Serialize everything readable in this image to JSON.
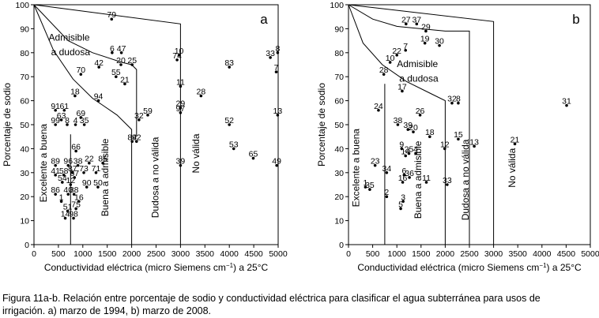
{
  "chart_data": [
    {
      "type": "scatter",
      "panel_label": "a",
      "xlabel": "Conductividad eléctrica (micro Siemens cm",
      "xlabel_sup": "−1",
      "xlabel_suffix": ") a 25°C",
      "ylabel": "Porcentaje de sodio",
      "xlim": [
        0,
        5000
      ],
      "ylim": [
        0,
        100
      ],
      "x_ticks": [
        0,
        500,
        1000,
        1500,
        2000,
        2500,
        3000,
        3500,
        4000,
        4500,
        5000
      ],
      "y_ticks": [
        0,
        10,
        20,
        30,
        40,
        50,
        60,
        70,
        80,
        90,
        100
      ],
      "regions": [
        {
          "label": "Excelente a buena",
          "orient": "vertical",
          "x": 260,
          "y": 34
        },
        {
          "label": "Buena a admisible",
          "orient": "vertical",
          "x": 1520,
          "y": 28
        },
        {
          "label": "Admisible",
          "orient": "horizontal",
          "x": 300,
          "y": 85
        },
        {
          "label": "a dudosa",
          "orient": "horizontal",
          "x": 350,
          "y": 79
        },
        {
          "label": "Dudosa a no válida",
          "orient": "vertical",
          "x": 2550,
          "y": 28
        },
        {
          "label": "No válida",
          "orient": "vertical",
          "x": 3380,
          "y": 38
        }
      ],
      "points": [
        {
          "label": "79",
          "x": 1590,
          "y": 94
        },
        {
          "label": "6",
          "x": 1600,
          "y": 80
        },
        {
          "label": "47",
          "x": 1790,
          "y": 80
        },
        {
          "label": "42",
          "x": 1330,
          "y": 74
        },
        {
          "label": "20",
          "x": 1780,
          "y": 75
        },
        {
          "label": "25",
          "x": 2010,
          "y": 75
        },
        {
          "label": "70",
          "x": 960,
          "y": 71
        },
        {
          "label": "55",
          "x": 1680,
          "y": 70
        },
        {
          "label": "21",
          "x": 1860,
          "y": 67
        },
        {
          "label": "18",
          "x": 840,
          "y": 62
        },
        {
          "label": "94",
          "x": 1320,
          "y": 60
        },
        {
          "label": "91",
          "x": 440,
          "y": 56
        },
        {
          "label": "61",
          "x": 620,
          "y": 56
        },
        {
          "label": "63",
          "x": 560,
          "y": 52
        },
        {
          "label": "69",
          "x": 960,
          "y": 53
        },
        {
          "label": "99",
          "x": 440,
          "y": 50
        },
        {
          "label": "8",
          "x": 680,
          "y": 50
        },
        {
          "label": "4",
          "x": 850,
          "y": 50
        },
        {
          "label": "35",
          "x": 1030,
          "y": 50
        },
        {
          "label": "66",
          "x": 860,
          "y": 39
        },
        {
          "label": "89",
          "x": 440,
          "y": 33
        },
        {
          "label": "96",
          "x": 700,
          "y": 33
        },
        {
          "label": "38",
          "x": 900,
          "y": 33
        },
        {
          "label": "22",
          "x": 1130,
          "y": 34
        },
        {
          "label": "85",
          "x": 1410,
          "y": 34
        },
        {
          "label": "41",
          "x": 440,
          "y": 29
        },
        {
          "label": "58",
          "x": 610,
          "y": 29
        },
        {
          "label": "87",
          "x": 790,
          "y": 30
        },
        {
          "label": "67",
          "x": 830,
          "y": 28
        },
        {
          "label": "73",
          "x": 1020,
          "y": 30
        },
        {
          "label": "71",
          "x": 1270,
          "y": 30
        },
        {
          "label": "54",
          "x": 580,
          "y": 26
        },
        {
          "label": "12",
          "x": 750,
          "y": 25
        },
        {
          "label": "90",
          "x": 1080,
          "y": 24
        },
        {
          "label": "50",
          "x": 1310,
          "y": 24
        },
        {
          "label": "86",
          "x": 440,
          "y": 21
        },
        {
          "label": "40",
          "x": 700,
          "y": 21
        },
        {
          "label": "88",
          "x": 820,
          "y": 21
        },
        {
          "label": "1",
          "x": 560,
          "y": 18
        },
        {
          "label": "16",
          "x": 920,
          "y": 18
        },
        {
          "label": "51",
          "x": 690,
          "y": 14
        },
        {
          "label": "75",
          "x": 860,
          "y": 15
        },
        {
          "label": "14",
          "x": 640,
          "y": 11
        },
        {
          "label": "98",
          "x": 810,
          "y": 11
        },
        {
          "label": "84",
          "x": 2010,
          "y": 43
        },
        {
          "label": "92",
          "x": 2100,
          "y": 43
        },
        {
          "label": "32",
          "x": 2150,
          "y": 52
        },
        {
          "label": "59",
          "x": 2330,
          "y": 54
        },
        {
          "label": "10",
          "x": 2970,
          "y": 79
        },
        {
          "label": "74",
          "x": 2930,
          "y": 77
        },
        {
          "label": "11",
          "x": 3000,
          "y": 66
        },
        {
          "label": "29",
          "x": 3000,
          "y": 57
        },
        {
          "label": "97",
          "x": 3000,
          "y": 55
        },
        {
          "label": "39",
          "x": 3000,
          "y": 33
        },
        {
          "label": "28",
          "x": 3420,
          "y": 62
        },
        {
          "label": "83",
          "x": 4000,
          "y": 74
        },
        {
          "label": "33",
          "x": 4840,
          "y": 78
        },
        {
          "label": "8",
          "x": 4990,
          "y": 80
        },
        {
          "label": "7",
          "x": 4960,
          "y": 72
        },
        {
          "label": "52",
          "x": 4000,
          "y": 50
        },
        {
          "label": "13",
          "x": 4990,
          "y": 54
        },
        {
          "label": "53",
          "x": 4090,
          "y": 40
        },
        {
          "label": "65",
          "x": 4490,
          "y": 36
        },
        {
          "label": "49",
          "x": 4970,
          "y": 33
        }
      ]
    },
    {
      "type": "scatter",
      "panel_label": "b",
      "xlabel": "Conductividad eléctrica (micro Siemens cm",
      "xlabel_sup": "−1",
      "xlabel_suffix": ") a 25°C",
      "ylabel": "Porcentaje de sodio",
      "xlim": [
        0,
        5000
      ],
      "ylim": [
        0,
        100
      ],
      "x_ticks": [
        0,
        500,
        1000,
        1500,
        2000,
        2500,
        3000,
        3500,
        4000,
        4500,
        5000
      ],
      "y_ticks": [
        0,
        10,
        20,
        30,
        40,
        50,
        60,
        70,
        80,
        90,
        100
      ],
      "regions": [
        {
          "label": "Excelente a buena",
          "orient": "vertical",
          "x": 220,
          "y": 32
        },
        {
          "label": "Buena a admisible",
          "orient": "vertical",
          "x": 1500,
          "y": 27
        },
        {
          "label": "Admisible",
          "orient": "horizontal",
          "x": 1000,
          "y": 74
        },
        {
          "label": "a dudosa",
          "orient": "horizontal",
          "x": 1050,
          "y": 68
        },
        {
          "label": "Dudosa a no válida",
          "orient": "vertical",
          "x": 2480,
          "y": 27
        },
        {
          "label": "No válida",
          "orient": "vertical",
          "x": 3450,
          "y": 32
        }
      ],
      "points": [
        {
          "label": "27",
          "x": 1190,
          "y": 92
        },
        {
          "label": "37",
          "x": 1410,
          "y": 92
        },
        {
          "label": "29",
          "x": 1600,
          "y": 89
        },
        {
          "label": "19",
          "x": 1580,
          "y": 84
        },
        {
          "label": "30",
          "x": 1880,
          "y": 83
        },
        {
          "label": "22",
          "x": 1000,
          "y": 79
        },
        {
          "label": "7",
          "x": 1180,
          "y": 81
        },
        {
          "label": "10",
          "x": 860,
          "y": 76
        },
        {
          "label": "28",
          "x": 730,
          "y": 71
        },
        {
          "label": "17",
          "x": 1110,
          "y": 64
        },
        {
          "label": "32",
          "x": 2140,
          "y": 59
        },
        {
          "label": "8",
          "x": 2270,
          "y": 59
        },
        {
          "label": "24",
          "x": 620,
          "y": 56
        },
        {
          "label": "26",
          "x": 1480,
          "y": 54
        },
        {
          "label": "38",
          "x": 1020,
          "y": 50
        },
        {
          "label": "39",
          "x": 1230,
          "y": 48
        },
        {
          "label": "20",
          "x": 1340,
          "y": 47
        },
        {
          "label": "18",
          "x": 1680,
          "y": 45
        },
        {
          "label": "15",
          "x": 2270,
          "y": 44
        },
        {
          "label": "13",
          "x": 2600,
          "y": 41
        },
        {
          "label": "12",
          "x": 1990,
          "y": 40
        },
        {
          "label": "9",
          "x": 1100,
          "y": 40
        },
        {
          "label": "25",
          "x": 1250,
          "y": 38
        },
        {
          "label": "4",
          "x": 1390,
          "y": 38
        },
        {
          "label": "14",
          "x": 1180,
          "y": 37
        },
        {
          "label": "31",
          "x": 4510,
          "y": 58
        },
        {
          "label": "21",
          "x": 3440,
          "y": 42
        },
        {
          "label": "23",
          "x": 550,
          "y": 33
        },
        {
          "label": "34",
          "x": 790,
          "y": 30
        },
        {
          "label": "6",
          "x": 1150,
          "y": 29
        },
        {
          "label": "36",
          "x": 1260,
          "y": 28
        },
        {
          "label": "16",
          "x": 1120,
          "y": 26
        },
        {
          "label": "11",
          "x": 1610,
          "y": 26
        },
        {
          "label": "33",
          "x": 2040,
          "y": 25
        },
        {
          "label": "1",
          "x": 350,
          "y": 24
        },
        {
          "label": "35",
          "x": 440,
          "y": 23
        },
        {
          "label": "2",
          "x": 790,
          "y": 20
        },
        {
          "label": "3",
          "x": 1130,
          "y": 18
        },
        {
          "label": "5",
          "x": 1080,
          "y": 15
        }
      ]
    }
  ],
  "caption": {
    "line1": "Figura 11a-b. Relación entre porcentaje de sodio y conductividad eléctrica para clasificar el agua subterránea para usos de",
    "line2": "irrigación. a) marzo de 1994, b) marzo de 2008."
  }
}
